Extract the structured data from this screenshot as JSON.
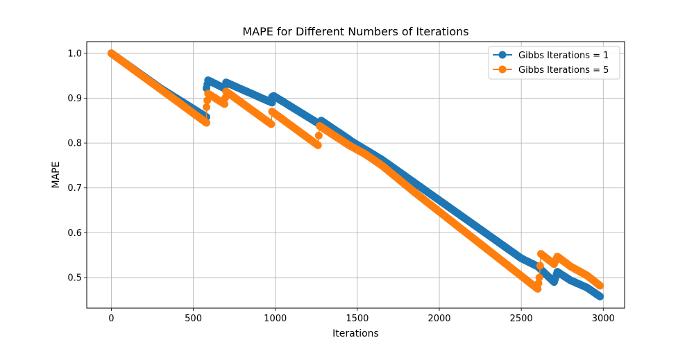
{
  "chart_data": {
    "type": "line",
    "title": "MAPE for Different Numbers of Iterations",
    "xlabel": "Iterations",
    "ylabel": "MAPE",
    "xlim": [
      -150,
      3130
    ],
    "ylim": [
      0.432,
      1.026
    ],
    "xticks": [
      0,
      500,
      1000,
      1500,
      2000,
      2500,
      3000
    ],
    "yticks": [
      0.5,
      0.6,
      0.7,
      0.8,
      0.9,
      1.0
    ],
    "xtick_labels": [
      "0",
      "500",
      "1000",
      "1500",
      "2000",
      "2500",
      "3000"
    ],
    "ytick_labels": [
      "0.5",
      "0.6",
      "0.7",
      "0.8",
      "0.9",
      "1.0"
    ],
    "grid": true,
    "legend_position": "top-right",
    "series": [
      {
        "name": "Gibbs Iterations = 1",
        "color": "#1f77b4",
        "marker": "circle",
        "points": [
          [
            0,
            1.0
          ],
          [
            300,
            0.922
          ],
          [
            580,
            0.858
          ],
          [
            580,
            0.922
          ],
          [
            590,
            0.94
          ],
          [
            690,
            0.922
          ],
          [
            700,
            0.935
          ],
          [
            980,
            0.89
          ],
          [
            980,
            0.903
          ],
          [
            990,
            0.905
          ],
          [
            1270,
            0.842
          ],
          [
            1280,
            0.85
          ],
          [
            1450,
            0.808
          ],
          [
            1460,
            0.805
          ],
          [
            1550,
            0.785
          ],
          [
            1560,
            0.783
          ],
          [
            1650,
            0.763
          ],
          [
            2500,
            0.543
          ],
          [
            2600,
            0.525
          ],
          [
            2700,
            0.49
          ],
          [
            2720,
            0.513
          ],
          [
            2800,
            0.494
          ],
          [
            2900,
            0.478
          ],
          [
            2980,
            0.458
          ]
        ]
      },
      {
        "name": "Gibbs Iterations = 5",
        "color": "#ff7f0e",
        "marker": "circle",
        "points": [
          [
            0,
            1.0
          ],
          [
            300,
            0.92
          ],
          [
            580,
            0.845
          ],
          [
            580,
            0.88
          ],
          [
            590,
            0.91
          ],
          [
            690,
            0.887
          ],
          [
            700,
            0.915
          ],
          [
            975,
            0.842
          ],
          [
            980,
            0.87
          ],
          [
            1260,
            0.795
          ],
          [
            1270,
            0.838
          ],
          [
            1450,
            0.795
          ],
          [
            1550,
            0.775
          ],
          [
            1650,
            0.75
          ],
          [
            1850,
            0.69
          ],
          [
            2600,
            0.475
          ],
          [
            2610,
            0.5
          ],
          [
            2620,
            0.553
          ],
          [
            2700,
            0.53
          ],
          [
            2720,
            0.547
          ],
          [
            2800,
            0.525
          ],
          [
            2900,
            0.505
          ],
          [
            2980,
            0.482
          ]
        ]
      }
    ]
  }
}
